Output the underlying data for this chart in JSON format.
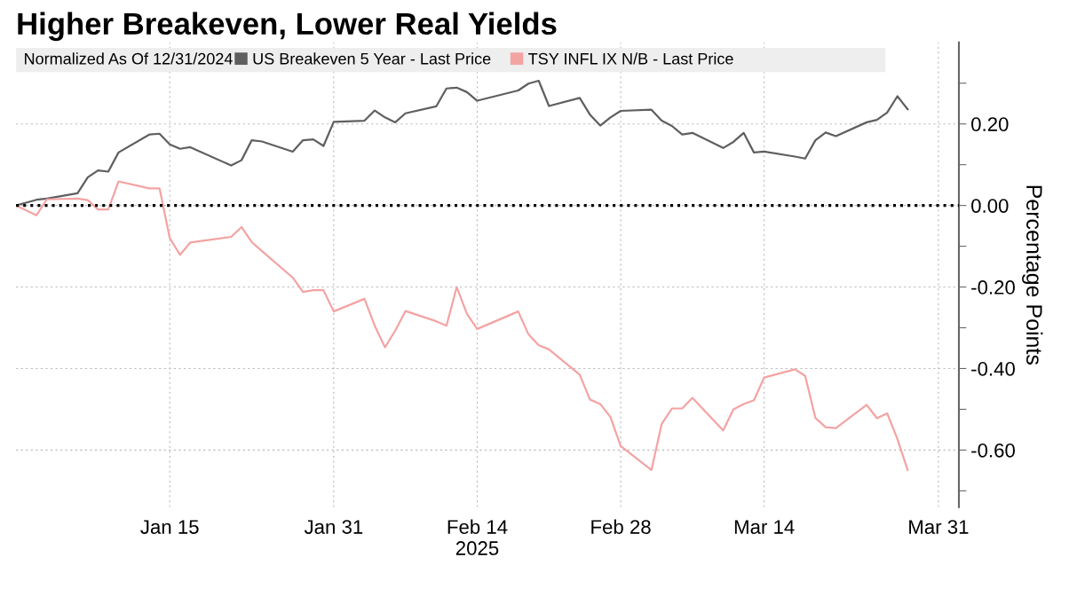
{
  "chart_data": {
    "type": "line",
    "title": "Higher Breakeven, Lower Real Yields",
    "legend_title": "Normalized As Of 12/31/2024",
    "ylabel": "Percentage Points",
    "x": [
      "2024-12-31",
      "2025-01-02",
      "2025-01-03",
      "2025-01-06",
      "2025-01-07",
      "2025-01-08",
      "2025-01-09",
      "2025-01-10",
      "2025-01-13",
      "2025-01-14",
      "2025-01-15",
      "2025-01-16",
      "2025-01-17",
      "2025-01-21",
      "2025-01-22",
      "2025-01-23",
      "2025-01-24",
      "2025-01-27",
      "2025-01-28",
      "2025-01-29",
      "2025-01-30",
      "2025-01-31",
      "2025-02-03",
      "2025-02-04",
      "2025-02-05",
      "2025-02-06",
      "2025-02-07",
      "2025-02-10",
      "2025-02-11",
      "2025-02-12",
      "2025-02-13",
      "2025-02-14",
      "2025-02-18",
      "2025-02-19",
      "2025-02-20",
      "2025-02-21",
      "2025-02-24",
      "2025-02-25",
      "2025-02-26",
      "2025-02-27",
      "2025-02-28",
      "2025-03-03",
      "2025-03-04",
      "2025-03-05",
      "2025-03-06",
      "2025-03-07",
      "2025-03-10",
      "2025-03-11",
      "2025-03-12",
      "2025-03-13",
      "2025-03-14",
      "2025-03-17",
      "2025-03-18",
      "2025-03-19",
      "2025-03-20",
      "2025-03-21",
      "2025-03-24",
      "2025-03-25",
      "2025-03-26",
      "2025-03-27",
      "2025-03-28"
    ],
    "series": [
      {
        "name": "US Breakeven 5 Year - Last Price",
        "color": "#5f5f5f",
        "values": [
          0.0,
          0.014,
          0.017,
          0.03,
          0.069,
          0.086,
          0.083,
          0.13,
          0.174,
          0.176,
          0.15,
          0.139,
          0.143,
          0.098,
          0.111,
          0.16,
          0.157,
          0.132,
          0.16,
          0.162,
          0.146,
          0.205,
          0.208,
          0.233,
          0.216,
          0.204,
          0.226,
          0.243,
          0.287,
          0.289,
          0.278,
          0.257,
          0.282,
          0.299,
          0.306,
          0.244,
          0.264,
          0.223,
          0.196,
          0.216,
          0.232,
          0.235,
          0.208,
          0.195,
          0.174,
          0.178,
          0.141,
          0.156,
          0.178,
          0.13,
          0.132,
          0.12,
          0.115,
          0.16,
          0.179,
          0.17,
          0.204,
          0.21,
          0.228,
          0.268,
          0.236
        ]
      },
      {
        "name": "TSY INFL IX N/B - Last Price",
        "color": "#f4a3a3",
        "values": [
          0.0,
          -0.024,
          0.015,
          0.017,
          0.013,
          -0.01,
          -0.01,
          0.059,
          0.042,
          0.042,
          -0.08,
          -0.121,
          -0.091,
          -0.077,
          -0.053,
          -0.09,
          -0.112,
          -0.177,
          -0.212,
          -0.208,
          -0.208,
          -0.26,
          -0.229,
          -0.295,
          -0.348,
          -0.307,
          -0.259,
          -0.284,
          -0.295,
          -0.2,
          -0.266,
          -0.303,
          -0.26,
          -0.316,
          -0.343,
          -0.353,
          -0.415,
          -0.476,
          -0.487,
          -0.519,
          -0.59,
          -0.649,
          -0.536,
          -0.498,
          -0.498,
          -0.472,
          -0.552,
          -0.5,
          -0.487,
          -0.478,
          -0.422,
          -0.402,
          -0.418,
          -0.521,
          -0.544,
          -0.546,
          -0.489,
          -0.522,
          -0.51,
          -0.573,
          -0.649
        ]
      }
    ],
    "xlim": [
      "2024-12-31",
      "2025-04-02"
    ],
    "xticks": [
      {
        "value": "2025-01-15",
        "label": "Jan 15"
      },
      {
        "value": "2025-01-31",
        "label": "Jan 31"
      },
      {
        "value": "2025-02-14",
        "label": "Feb 14\n2025"
      },
      {
        "value": "2025-02-28",
        "label": "Feb 28"
      },
      {
        "value": "2025-03-14",
        "label": "Mar 14"
      },
      {
        "value": "2025-03-31",
        "label": "Mar 31"
      }
    ],
    "ylim": [
      -0.74,
      0.4
    ],
    "yticks": [
      {
        "value": 0.3,
        "label": null
      },
      {
        "value": 0.2,
        "label": "0.20"
      },
      {
        "value": 0.1,
        "label": null
      },
      {
        "value": 0,
        "label": "0.00"
      },
      {
        "value": -0.1,
        "label": null
      },
      {
        "value": -0.2,
        "label": "-0.20"
      },
      {
        "value": -0.3,
        "label": null
      },
      {
        "value": -0.4,
        "label": "-0.40"
      },
      {
        "value": -0.5,
        "label": null
      },
      {
        "value": -0.6,
        "label": "-0.60"
      },
      {
        "value": -0.7,
        "label": null
      }
    ],
    "ref_lines": [
      {
        "axis": "y",
        "value": 0,
        "color": "#000000",
        "line_style": "dotted"
      }
    ],
    "grid": true,
    "legend": "top left",
    "marker": "none",
    "line_style": "solid"
  }
}
